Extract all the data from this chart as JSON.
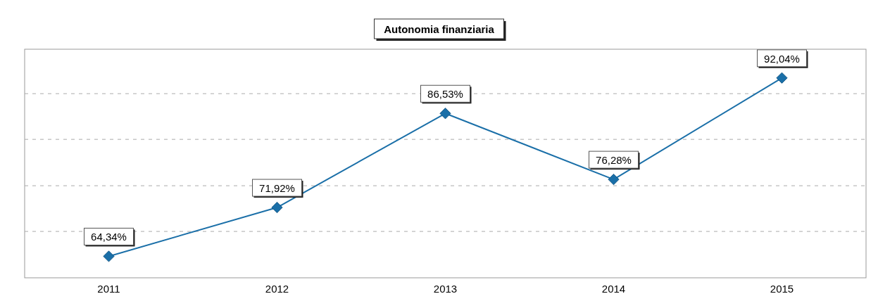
{
  "chart_data": {
    "type": "line",
    "title": "Autonomia finanziaria",
    "categories": [
      "2011",
      "2012",
      "2013",
      "2014",
      "2015"
    ],
    "series": [
      {
        "color": "#1a6fa8",
        "values": [
          64.34,
          71.92,
          86.53,
          76.28,
          92.04
        ],
        "value_labels": [
          "64,34%",
          "71,92%",
          "86,53%",
          "76,28%",
          "92,04%"
        ]
      }
    ],
    "ylim": [
      61,
      96.5
    ],
    "yticks": [
      {
        "value": 68.2,
        "label": null
      },
      {
        "value": 75.3,
        "label": null
      },
      {
        "value": 82.5,
        "label": null
      },
      {
        "value": 89.6,
        "label": null
      }
    ],
    "grid": "y",
    "marker": "diamond",
    "tick_labels": "x"
  }
}
